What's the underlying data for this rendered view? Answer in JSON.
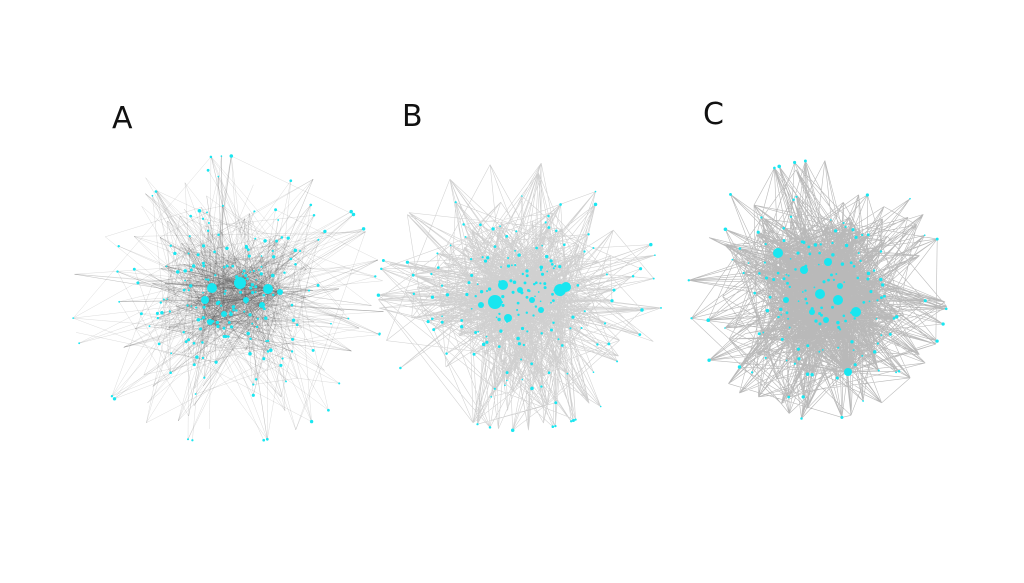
{
  "panels": [
    {
      "label": "A",
      "edge_color": "#5f5f5f",
      "node_color": "#19e6f0",
      "density": "sparse"
    },
    {
      "label": "B",
      "edge_color": "#555555",
      "node_color": "#19e6f0",
      "density": "medium"
    },
    {
      "label": "C",
      "edge_color": "#3d3d3d",
      "node_color": "#19e6f0",
      "density": "dense"
    }
  ]
}
